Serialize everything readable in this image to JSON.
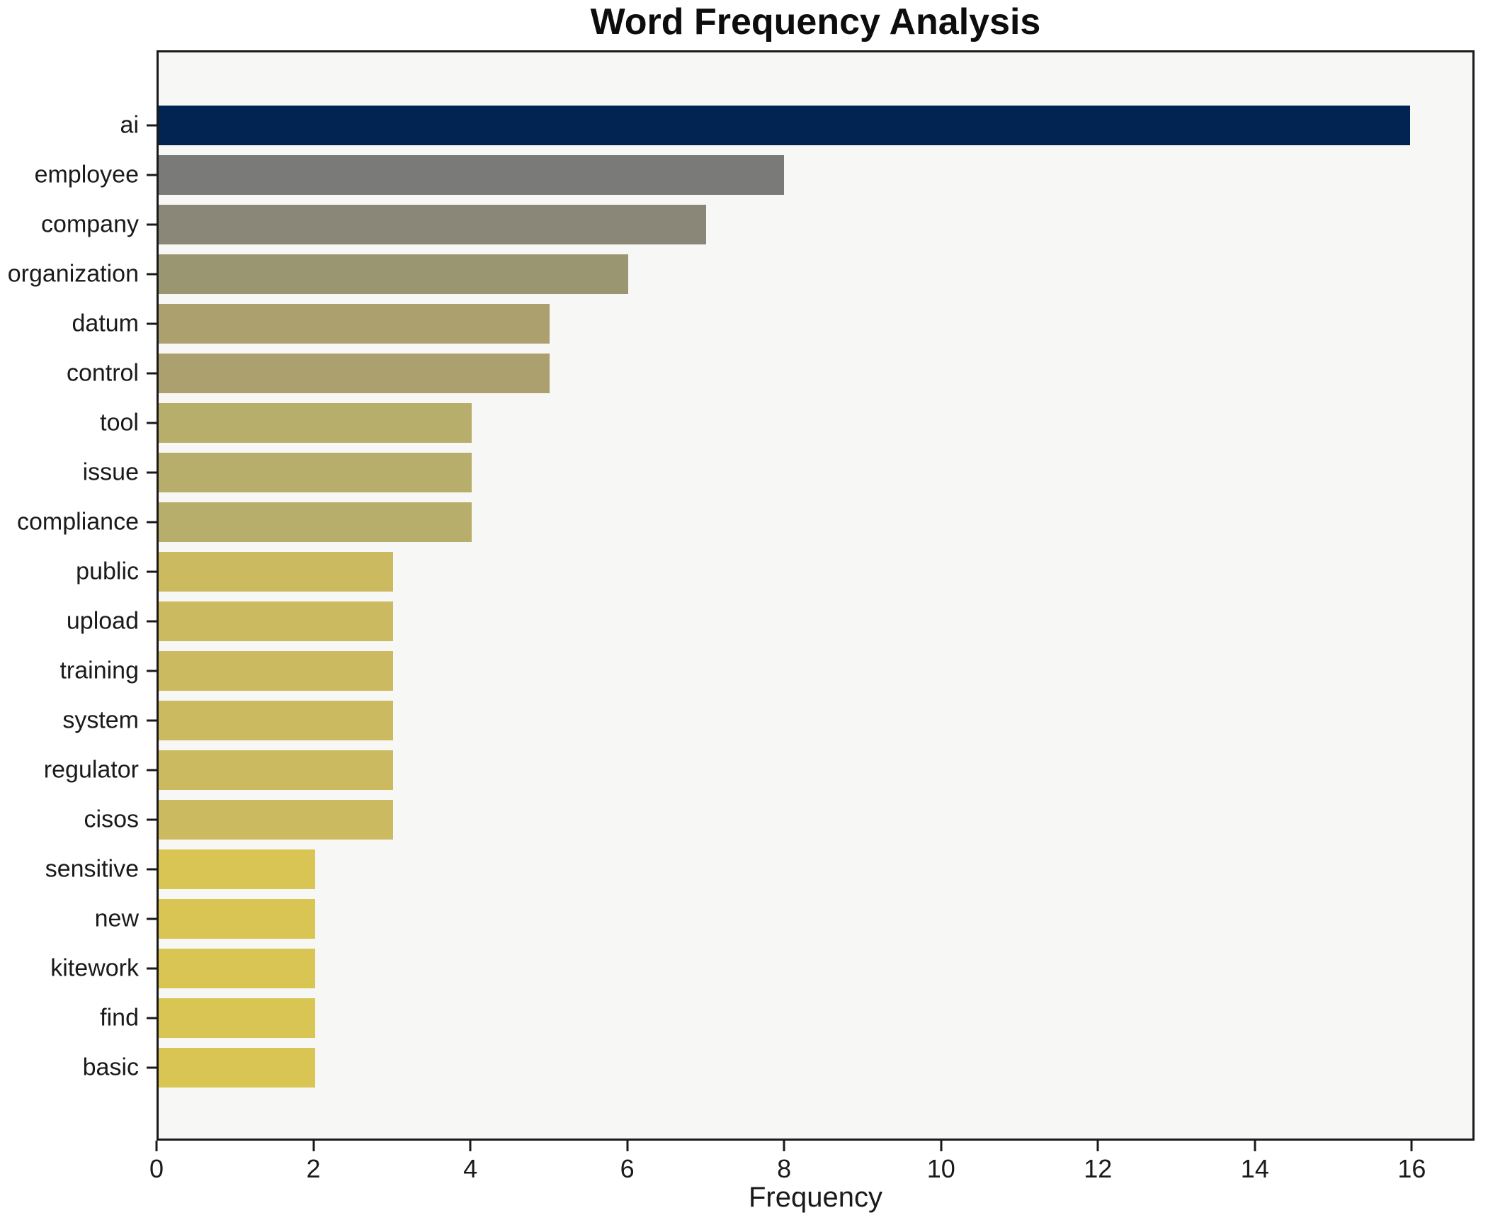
{
  "chart_data": {
    "type": "bar",
    "orientation": "horizontal",
    "title": "Word Frequency Analysis",
    "xlabel": "Frequency",
    "ylabel": "",
    "categories": [
      "ai",
      "employee",
      "company",
      "organization",
      "datum",
      "control",
      "tool",
      "issue",
      "compliance",
      "public",
      "upload",
      "training",
      "system",
      "regulator",
      "cisos",
      "sensitive",
      "new",
      "kitework",
      "find",
      "basic"
    ],
    "values": [
      16,
      8,
      7,
      6,
      5,
      5,
      4,
      4,
      4,
      3,
      3,
      3,
      3,
      3,
      3,
      2,
      2,
      2,
      2,
      2
    ],
    "bar_colors": [
      "#022452",
      "#7a7a78",
      "#8a8779",
      "#9b9672",
      "#ada06f",
      "#ada06f",
      "#b8ae6b",
      "#b8ae6b",
      "#b8ae6b",
      "#cbba60",
      "#cbba60",
      "#cbba60",
      "#cbba60",
      "#cbba60",
      "#cbba60",
      "#d9c553",
      "#d9c553",
      "#d9c553",
      "#d9c553",
      "#d9c553"
    ],
    "xticks": [
      0,
      2,
      4,
      6,
      8,
      10,
      12,
      14,
      16
    ],
    "xlim": [
      0,
      16.8
    ],
    "grid": false,
    "legend": false,
    "plot_background": "#f7f7f5",
    "figure_background": "#ffffff",
    "axis_color": "#1a1a1a"
  }
}
